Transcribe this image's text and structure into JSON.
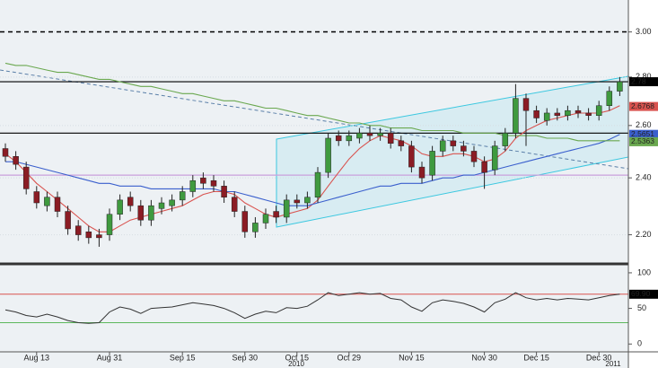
{
  "chart_data": [
    {
      "type": "candlestick",
      "categories": [
        null,
        null,
        null,
        "Aug 13",
        null,
        null,
        null,
        null,
        null,
        null,
        "Aug 31",
        null,
        null,
        null,
        null,
        null,
        null,
        "Sep 15",
        null,
        null,
        null,
        null,
        null,
        "Sep 30",
        null,
        null,
        null,
        null,
        "Oct 15",
        null,
        null,
        null,
        null,
        "Oct 29",
        null,
        null,
        null,
        null,
        null,
        "Nov 15",
        null,
        null,
        null,
        null,
        null,
        null,
        "Nov 30",
        null,
        null,
        null,
        null,
        "Dec 15",
        null,
        null,
        null,
        null,
        null,
        "Dec 30",
        null,
        null
      ],
      "open": [
        2.51,
        2.48,
        2.44,
        2.35,
        2.3,
        2.33,
        2.28,
        2.23,
        2.21,
        2.2,
        2.2,
        2.27,
        2.33,
        2.3,
        2.25,
        2.29,
        2.3,
        2.32,
        2.35,
        2.4,
        2.39,
        2.37,
        2.33,
        2.28,
        2.21,
        2.24,
        2.28,
        2.26,
        2.32,
        2.31,
        2.33,
        2.42,
        2.56,
        2.54,
        2.55,
        2.57,
        2.56,
        2.57,
        2.54,
        2.52,
        2.44,
        2.41,
        2.5,
        2.54,
        2.52,
        2.5,
        2.46,
        2.43,
        2.52,
        2.57,
        2.71,
        2.66,
        2.62,
        2.65,
        2.64,
        2.66,
        2.65,
        2.64,
        2.68,
        2.74
      ],
      "high": [
        2.53,
        2.5,
        2.46,
        2.37,
        2.35,
        2.35,
        2.3,
        2.25,
        2.23,
        2.22,
        2.29,
        2.34,
        2.35,
        2.32,
        2.32,
        2.33,
        2.34,
        2.37,
        2.41,
        2.42,
        2.41,
        2.39,
        2.35,
        2.3,
        2.26,
        2.29,
        2.3,
        2.34,
        2.34,
        2.35,
        2.44,
        2.57,
        2.58,
        2.58,
        2.59,
        2.6,
        2.59,
        2.59,
        2.56,
        2.54,
        2.46,
        2.52,
        2.56,
        2.56,
        2.54,
        2.52,
        2.48,
        2.54,
        2.59,
        2.77,
        2.73,
        2.68,
        2.67,
        2.67,
        2.68,
        2.68,
        2.67,
        2.7,
        2.76,
        2.8
      ],
      "low": [
        2.46,
        2.43,
        2.34,
        2.29,
        2.28,
        2.26,
        2.2,
        2.18,
        2.17,
        2.16,
        2.18,
        2.25,
        2.28,
        2.23,
        2.23,
        2.27,
        2.28,
        2.3,
        2.33,
        2.36,
        2.35,
        2.31,
        2.26,
        2.19,
        2.19,
        2.22,
        2.24,
        2.24,
        2.29,
        2.29,
        2.31,
        2.4,
        2.52,
        2.52,
        2.53,
        2.54,
        2.54,
        2.51,
        2.5,
        2.42,
        2.38,
        2.39,
        2.48,
        2.5,
        2.48,
        2.44,
        2.36,
        2.41,
        2.5,
        2.55,
        2.52,
        2.61,
        2.6,
        2.62,
        2.62,
        2.63,
        2.62,
        2.62,
        2.66,
        2.72
      ],
      "close": [
        2.48,
        2.45,
        2.36,
        2.31,
        2.33,
        2.28,
        2.22,
        2.2,
        2.19,
        2.19,
        2.27,
        2.32,
        2.3,
        2.25,
        2.3,
        2.31,
        2.32,
        2.35,
        2.39,
        2.38,
        2.37,
        2.33,
        2.28,
        2.21,
        2.24,
        2.27,
        2.26,
        2.32,
        2.31,
        2.33,
        2.42,
        2.55,
        2.54,
        2.56,
        2.57,
        2.56,
        2.57,
        2.53,
        2.52,
        2.44,
        2.4,
        2.5,
        2.54,
        2.52,
        2.5,
        2.46,
        2.42,
        2.52,
        2.57,
        2.71,
        2.66,
        2.63,
        2.65,
        2.64,
        2.66,
        2.65,
        2.64,
        2.68,
        2.74,
        2.78
      ],
      "up_color": "#3f9a3f",
      "down_color": "#8b1c24",
      "series": [
        {
          "color": "#d9534f",
          "values": [
            2.49,
            2.46,
            2.42,
            2.38,
            2.35,
            2.32,
            2.29,
            2.26,
            2.23,
            2.21,
            2.21,
            2.23,
            2.25,
            2.26,
            2.27,
            2.28,
            2.29,
            2.3,
            2.32,
            2.34,
            2.35,
            2.35,
            2.34,
            2.31,
            2.29,
            2.27,
            2.26,
            2.27,
            2.28,
            2.29,
            2.32,
            2.37,
            2.42,
            2.47,
            2.51,
            2.54,
            2.56,
            2.55,
            2.54,
            2.52,
            2.49,
            2.48,
            2.48,
            2.49,
            2.49,
            2.48,
            2.46,
            2.47,
            2.5,
            2.55,
            2.58,
            2.6,
            2.62,
            2.63,
            2.64,
            2.65,
            2.65,
            2.65,
            2.66,
            2.68
          ]
        },
        {
          "color": "#3a5fcd",
          "values": [
            2.46,
            2.46,
            2.45,
            2.44,
            2.43,
            2.42,
            2.41,
            2.4,
            2.39,
            2.38,
            2.38,
            2.37,
            2.37,
            2.37,
            2.36,
            2.36,
            2.36,
            2.36,
            2.36,
            2.36,
            2.36,
            2.35,
            2.35,
            2.34,
            2.33,
            2.32,
            2.31,
            2.3,
            2.3,
            2.3,
            2.31,
            2.32,
            2.33,
            2.34,
            2.35,
            2.36,
            2.37,
            2.37,
            2.38,
            2.38,
            2.38,
            2.39,
            2.4,
            2.4,
            2.41,
            2.41,
            2.42,
            2.43,
            2.44,
            2.45,
            2.46,
            2.47,
            2.48,
            2.49,
            2.5,
            2.51,
            2.52,
            2.53,
            2.545,
            2.565
          ]
        },
        {
          "color": "#6aa84f",
          "values": [
            2.86,
            2.85,
            2.85,
            2.84,
            2.83,
            2.82,
            2.82,
            2.81,
            2.8,
            2.79,
            2.79,
            2.78,
            2.77,
            2.76,
            2.76,
            2.75,
            2.74,
            2.73,
            2.73,
            2.72,
            2.71,
            2.7,
            2.7,
            2.69,
            2.68,
            2.67,
            2.67,
            2.66,
            2.65,
            2.64,
            2.64,
            2.63,
            2.62,
            2.61,
            2.61,
            2.6,
            2.6,
            2.59,
            2.59,
            2.59,
            2.58,
            2.58,
            2.58,
            2.58,
            2.57,
            2.57,
            2.57,
            2.57,
            2.56,
            2.56,
            2.56,
            2.56,
            2.55,
            2.55,
            2.55,
            2.54,
            2.54,
            2.54,
            2.54,
            2.54
          ]
        }
      ],
      "ylim": [
        2.11,
        3.15
      ],
      "log_scale": true,
      "yticks": [
        {
          "value": 2.2,
          "label": "2.20"
        },
        {
          "value": 2.4,
          "label": "2.40"
        },
        {
          "value": 2.6,
          "label": "2.60"
        },
        {
          "value": 2.8,
          "label": "2.80"
        },
        {
          "value": 3.0,
          "label": "3.00"
        }
      ],
      "hlines": [
        {
          "value": 3.0,
          "color": "#000000",
          "dashed": true
        },
        {
          "value": 2.78,
          "color": "#000000",
          "dashed": false
        },
        {
          "value": 2.57,
          "color": "#000000",
          "dashed": false
        },
        {
          "value": 2.41,
          "color": "#c9a0dc",
          "dashed": false
        }
      ],
      "tags": [
        {
          "value": 2.78,
          "color": "#000000"
        },
        {
          "value": 2.6768,
          "color": "#d9534f"
        },
        {
          "value": 2.5651,
          "color": "#3a5fcd"
        },
        {
          "value": 2.5363,
          "color": "#6aa84f"
        }
      ],
      "annotations": [
        "2010",
        "2011"
      ]
    },
    {
      "type": "line",
      "color": "#333333",
      "values": [
        48,
        45,
        40,
        38,
        42,
        38,
        33,
        30,
        29,
        30,
        45,
        52,
        49,
        43,
        50,
        51,
        52,
        55,
        58,
        56,
        54,
        50,
        44,
        36,
        42,
        46,
        44,
        51,
        50,
        53,
        62,
        72,
        68,
        70,
        72,
        70,
        71,
        64,
        62,
        52,
        46,
        58,
        62,
        60,
        57,
        52,
        45,
        58,
        63,
        72,
        65,
        62,
        64,
        62,
        64,
        63,
        62,
        65,
        68,
        69.9
      ],
      "ylim": [
        -11,
        110
      ],
      "yticks": [
        0,
        50,
        100
      ],
      "hlines": [
        {
          "value": 70,
          "color": "#d9534f"
        },
        {
          "value": 30,
          "color": "#5cb85c"
        }
      ],
      "tag": {
        "value": 69.9,
        "label": "69.90",
        "color": "#000000"
      }
    }
  ]
}
